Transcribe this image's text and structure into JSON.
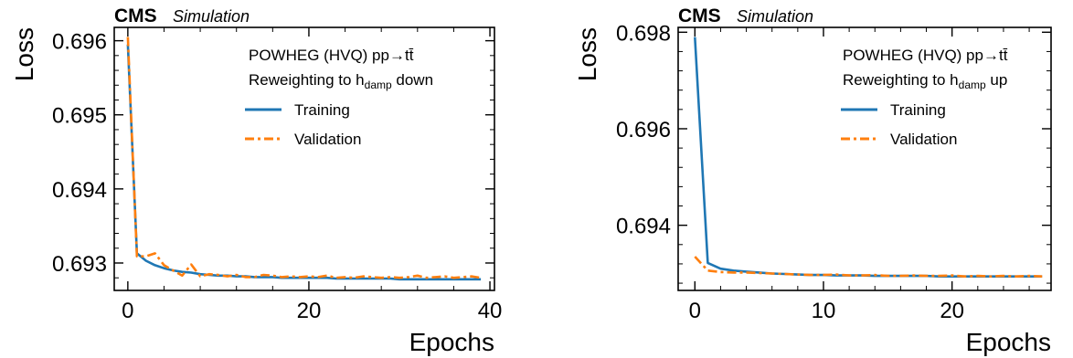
{
  "chart_data": [
    {
      "type": "line",
      "experiment": "CMS",
      "tag": "Simulation",
      "annotation_line1": "POWHEG (HVQ) pp→t",
      "annotation_line1_bar": "t̄",
      "annotation_line2_pre": "Reweighting to h",
      "annotation_line2_sub": "damp",
      "annotation_line2_post": " down",
      "xlabel": "Epochs",
      "ylabel": "Loss",
      "xlim": [
        -1.5,
        40.5
      ],
      "ylim": [
        0.69263,
        0.69618
      ],
      "xticks": [
        0,
        20,
        40
      ],
      "yticks": [
        0.693,
        0.694,
        0.695,
        0.696
      ],
      "ytick_labels": [
        "0.693",
        "0.694",
        "0.695",
        "0.696"
      ],
      "series": [
        {
          "name": "Training",
          "color": "#1f77b4",
          "style": "solid",
          "x": [
            0,
            1,
            2,
            3,
            4,
            5,
            6,
            7,
            8,
            9,
            10,
            11,
            12,
            13,
            14,
            15,
            16,
            17,
            18,
            19,
            20,
            21,
            22,
            23,
            24,
            25,
            26,
            27,
            28,
            29,
            30,
            31,
            32,
            33,
            34,
            35,
            36,
            37,
            38,
            39
          ],
          "y": [
            0.69595,
            0.69313,
            0.69303,
            0.69297,
            0.69293,
            0.6929,
            0.69288,
            0.69287,
            0.69285,
            0.69284,
            0.69283,
            0.69283,
            0.69282,
            0.69282,
            0.69281,
            0.69281,
            0.69281,
            0.6928,
            0.6928,
            0.6928,
            0.6928,
            0.6928,
            0.6928,
            0.69279,
            0.69279,
            0.69279,
            0.69279,
            0.69279,
            0.69279,
            0.69279,
            0.69278,
            0.69278,
            0.69278,
            0.69278,
            0.69278,
            0.69278,
            0.69278,
            0.69278,
            0.69278,
            0.69278
          ]
        },
        {
          "name": "Validation",
          "color": "#ff7f0e",
          "style": "dashdot",
          "x": [
            0,
            1,
            2,
            3,
            4,
            5,
            6,
            7,
            8,
            9,
            10,
            11,
            12,
            13,
            14,
            15,
            16,
            17,
            18,
            19,
            20,
            21,
            22,
            23,
            24,
            25,
            26,
            27,
            28,
            29,
            30,
            31,
            32,
            33,
            34,
            35,
            36,
            37,
            38,
            39
          ],
          "y": [
            0.69605,
            0.69309,
            0.69309,
            0.69313,
            0.69297,
            0.6929,
            0.69283,
            0.69298,
            0.69282,
            0.69285,
            0.69284,
            0.69282,
            0.69284,
            0.69281,
            0.69281,
            0.69284,
            0.69283,
            0.69281,
            0.69282,
            0.69281,
            0.69282,
            0.69281,
            0.69283,
            0.6928,
            0.69281,
            0.6928,
            0.69282,
            0.69281,
            0.6928,
            0.69281,
            0.6928,
            0.69281,
            0.69283,
            0.6928,
            0.69281,
            0.69282,
            0.6928,
            0.69281,
            0.69282,
            0.6928
          ]
        }
      ]
    },
    {
      "type": "line",
      "experiment": "CMS",
      "tag": "Simulation",
      "annotation_line1": "POWHEG (HVQ) pp→t",
      "annotation_line1_bar": "t̄",
      "annotation_line2_pre": "Reweighting to h",
      "annotation_line2_sub": "damp",
      "annotation_line2_post": " up",
      "xlabel": "Epochs",
      "ylabel": "Loss",
      "xlim": [
        -1.3,
        27.7
      ],
      "ylim": [
        0.69265,
        0.6981
      ],
      "xticks": [
        0,
        10,
        20
      ],
      "yticks": [
        0.694,
        0.696,
        0.698
      ],
      "ytick_labels": [
        "0.694",
        "0.696",
        "0.698"
      ],
      "series": [
        {
          "name": "Training",
          "color": "#1f77b4",
          "style": "solid",
          "x": [
            0,
            1,
            2,
            3,
            4,
            5,
            6,
            7,
            8,
            9,
            10,
            11,
            12,
            13,
            14,
            15,
            16,
            17,
            18,
            19,
            20,
            21,
            22,
            23,
            24,
            25,
            26,
            27
          ],
          "y": [
            0.6979,
            0.69322,
            0.6931,
            0.69306,
            0.69304,
            0.69302,
            0.693,
            0.69299,
            0.69298,
            0.69297,
            0.69297,
            0.69296,
            0.69296,
            0.69296,
            0.69295,
            0.69295,
            0.69295,
            0.69295,
            0.69295,
            0.69294,
            0.69294,
            0.69294,
            0.69294,
            0.69294,
            0.69294,
            0.69294,
            0.69294,
            0.69294
          ]
        },
        {
          "name": "Validation",
          "color": "#ff7f0e",
          "style": "dashdot",
          "x": [
            0,
            1,
            2,
            3,
            4,
            5,
            6,
            7,
            8,
            9,
            10,
            11,
            12,
            13,
            14,
            15,
            16,
            17,
            18,
            19,
            20,
            21,
            22,
            23,
            24,
            25,
            26,
            27
          ],
          "y": [
            0.69335,
            0.69306,
            0.69303,
            0.69302,
            0.69302,
            0.69301,
            0.693,
            0.69299,
            0.69298,
            0.69297,
            0.69297,
            0.69298,
            0.69296,
            0.69296,
            0.69297,
            0.69295,
            0.69295,
            0.69296,
            0.69295,
            0.69295,
            0.69296,
            0.69294,
            0.69295,
            0.69294,
            0.69295,
            0.69294,
            0.69295,
            0.69294
          ]
        }
      ]
    }
  ]
}
